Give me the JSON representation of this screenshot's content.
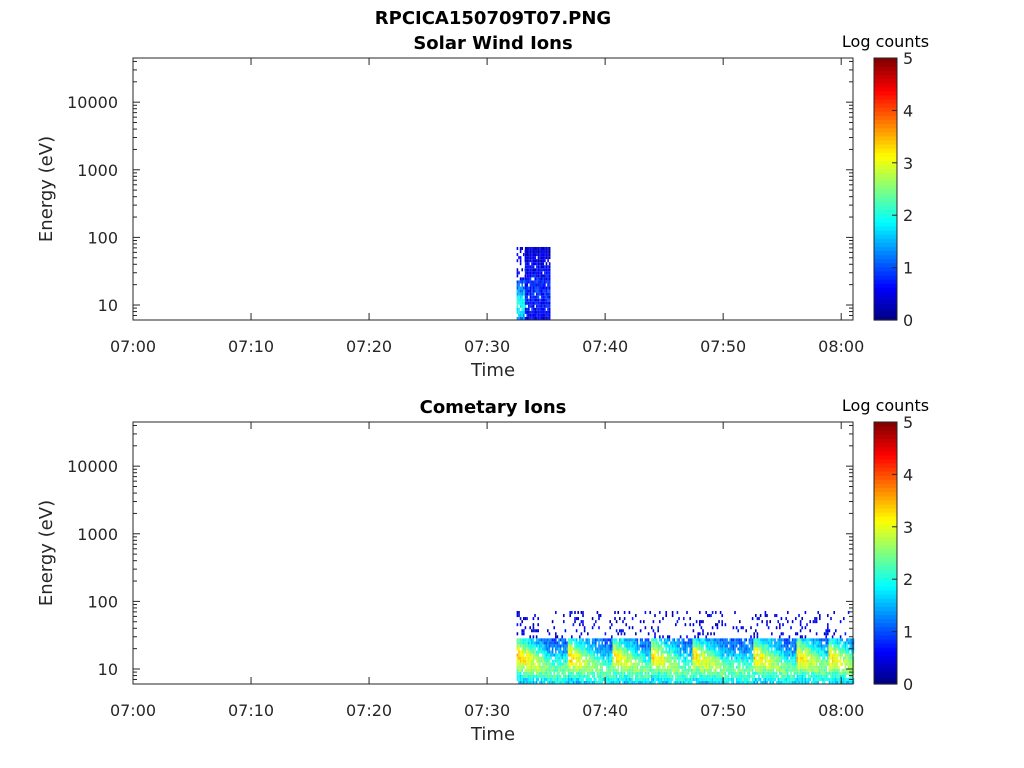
{
  "figure_title": "RPCICA150709T07.PNG",
  "colors": {
    "colormap": [
      "#00007f",
      "#0000ff",
      "#007fff",
      "#00ffff",
      "#7fff7f",
      "#ffff00",
      "#ff7f00",
      "#ff0000",
      "#7f0000"
    ],
    "axis": "#262626",
    "background": "#ffffff"
  },
  "chart_data": [
    {
      "type": "heatmap",
      "title": "Solar Wind Ions",
      "xlabel": "Time",
      "ylabel": "Energy (eV)",
      "x_ticks": [
        "07:00",
        "07:10",
        "07:20",
        "07:30",
        "07:40",
        "07:50",
        "08:00"
      ],
      "x_range_minutes": [
        0,
        61
      ],
      "y_scale": "log",
      "y_ticks": [
        "10",
        "100",
        "1000",
        "10000"
      ],
      "y_range": [
        6,
        45000
      ],
      "colorbar": {
        "label": "Log counts",
        "ticks": [
          "0",
          "1",
          "2",
          "3",
          "4",
          "5"
        ],
        "range": [
          0,
          5
        ]
      },
      "grid": false,
      "data_regions": [
        {
          "start_min": 32.5,
          "end_min": 33.2,
          "e_low": 6,
          "e_high": 25,
          "peak_log": 2.0,
          "upper_speckle_to": 80
        },
        {
          "start_min": 33.2,
          "end_min": 35.3,
          "e_low": 6,
          "e_high": 80,
          "peak_log": 0.8,
          "upper_speckle_to": 80
        }
      ]
    },
    {
      "type": "heatmap",
      "title": "Cometary Ions",
      "xlabel": "Time",
      "ylabel": "Energy (eV)",
      "x_ticks": [
        "07:00",
        "07:10",
        "07:20",
        "07:30",
        "07:40",
        "07:50",
        "08:00"
      ],
      "x_range_minutes": [
        0,
        61
      ],
      "y_scale": "log",
      "y_ticks": [
        "10",
        "100",
        "1000",
        "10000"
      ],
      "y_range": [
        6,
        45000
      ],
      "colorbar": {
        "label": "Log counts",
        "ticks": [
          "0",
          "1",
          "2",
          "3",
          "4",
          "5"
        ],
        "range": [
          0,
          5
        ]
      },
      "grid": false,
      "data_regions": [
        {
          "start_min": 32.5,
          "end_min": 61,
          "e_low": 6,
          "e_high": 30,
          "peak_log": 3.3,
          "upper_speckle_to": 80
        }
      ],
      "bursts_start_min": [
        32.6,
        36.8,
        40.5,
        43.8,
        47.3,
        52.5,
        56.2,
        58.8
      ]
    }
  ]
}
